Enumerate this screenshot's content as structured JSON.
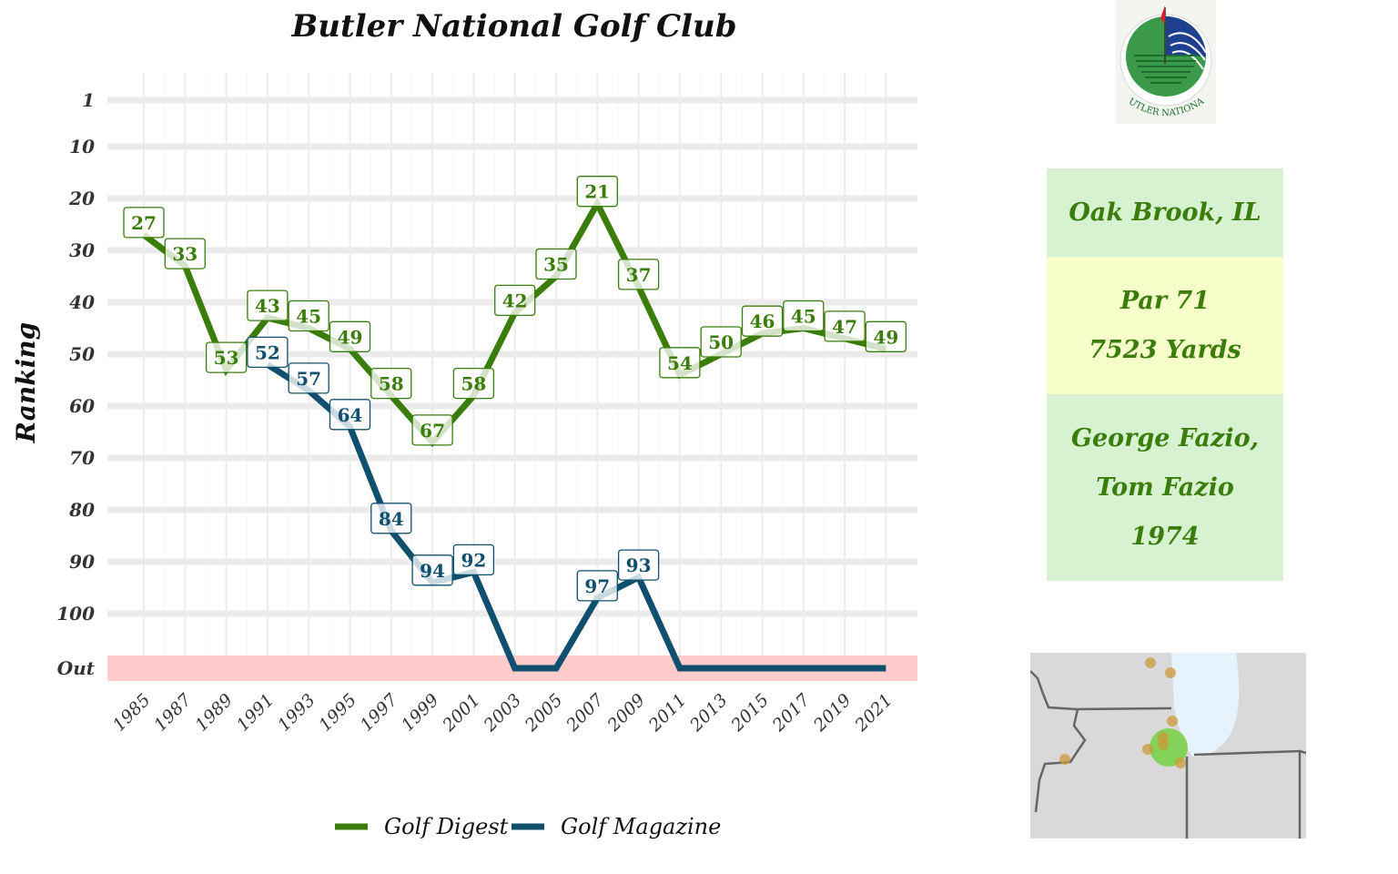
{
  "chart_data": {
    "type": "line",
    "title": "Butler National Golf Club",
    "ylabel": "Ranking",
    "xlabel": "",
    "y_reversed": true,
    "y_ticks": [
      "1",
      "10",
      "20",
      "30",
      "40",
      "50",
      "60",
      "70",
      "80",
      "90",
      "100",
      "Out"
    ],
    "x_ticks": [
      "1985",
      "1987",
      "1989",
      "1991",
      "1993",
      "1995",
      "1997",
      "1999",
      "2001",
      "2003",
      "2005",
      "2007",
      "2009",
      "2011",
      "2013",
      "2015",
      "2017",
      "2019",
      "2021"
    ],
    "out_band_label": "Out",
    "legend_position": "bottom",
    "series": [
      {
        "name": "Golf Digest",
        "color": "#3b7d0a",
        "points": [
          {
            "year": 1985,
            "rank": 27
          },
          {
            "year": 1987,
            "rank": 33
          },
          {
            "year": 1989,
            "rank": 53
          },
          {
            "year": 1991,
            "rank": 43
          },
          {
            "year": 1993,
            "rank": 45
          },
          {
            "year": 1995,
            "rank": 49
          },
          {
            "year": 1997,
            "rank": 58
          },
          {
            "year": 1999,
            "rank": 67
          },
          {
            "year": 2001,
            "rank": 58
          },
          {
            "year": 2003,
            "rank": 42
          },
          {
            "year": 2005,
            "rank": 35
          },
          {
            "year": 2007,
            "rank": 21
          },
          {
            "year": 2009,
            "rank": 37
          },
          {
            "year": 2011,
            "rank": 54
          },
          {
            "year": 2013,
            "rank": 50
          },
          {
            "year": 2015,
            "rank": 46
          },
          {
            "year": 2017,
            "rank": 45
          },
          {
            "year": 2019,
            "rank": 47
          },
          {
            "year": 2021,
            "rank": 49
          }
        ]
      },
      {
        "name": "Golf Magazine",
        "color": "#10506e",
        "points": [
          {
            "year": 1991,
            "rank": 52
          },
          {
            "year": 1993,
            "rank": 57
          },
          {
            "year": 1995,
            "rank": 64
          },
          {
            "year": 1997,
            "rank": 84
          },
          {
            "year": 1999,
            "rank": 94
          },
          {
            "year": 2001,
            "rank": 92
          },
          {
            "year": 2003,
            "rank": "Out"
          },
          {
            "year": 2005,
            "rank": "Out"
          },
          {
            "year": 2007,
            "rank": 97
          },
          {
            "year": 2009,
            "rank": 93
          },
          {
            "year": 2011,
            "rank": "Out"
          },
          {
            "year": 2013,
            "rank": "Out"
          },
          {
            "year": 2015,
            "rank": "Out"
          },
          {
            "year": 2017,
            "rank": "Out"
          },
          {
            "year": 2019,
            "rank": "Out"
          },
          {
            "year": 2021,
            "rank": "Out"
          }
        ]
      }
    ]
  },
  "logo": {
    "text": "BUTLER NATIONAL",
    "colors": {
      "green": "#3a9a4a",
      "blue": "#1f3f8f",
      "flag": "#d81e2b"
    }
  },
  "info": {
    "location": "Oak Brook, IL",
    "par": "Par 71",
    "yards": "7523 Yards",
    "designer_line1": "George Fazio,",
    "designer_line2": "Tom Fazio",
    "year": "1974"
  },
  "colors": {
    "accent_text": "#3b7d0a",
    "box_green": "#d6f2d0",
    "box_yellow": "#f6ffc9",
    "out_band": "#ffcccb",
    "map_land": "#d9d9d9",
    "map_lake": "#e6f3fc",
    "map_dot": "#cc9a3a",
    "map_highlight": "#6ecf3a"
  }
}
